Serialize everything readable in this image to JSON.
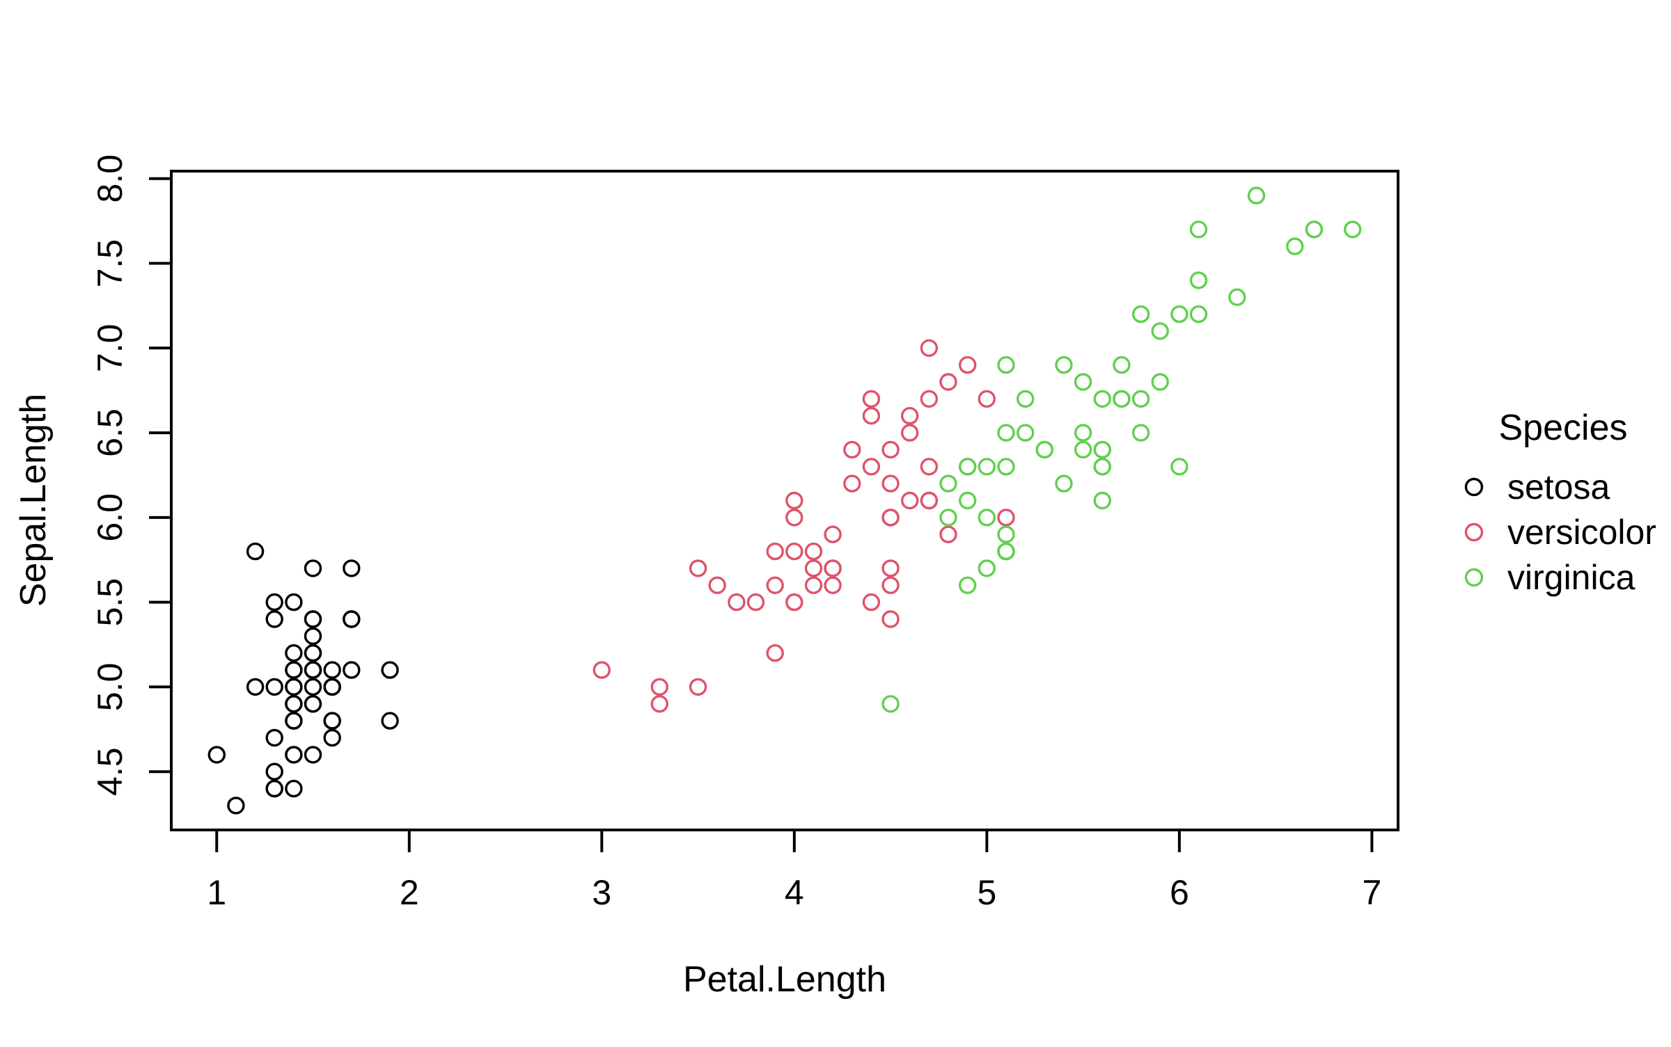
{
  "chart_data": {
    "type": "scatter",
    "xlabel": "Petal.Length",
    "ylabel": "Sepal.Length",
    "legend_title": "Species",
    "legend_position": "right-center",
    "grid": false,
    "marker": "open-circle",
    "xlim": [
      0.764,
      7.136
    ],
    "ylim": [
      4.156,
      8.044
    ],
    "x_ticks": [
      1,
      2,
      3,
      4,
      5,
      6,
      7
    ],
    "y_ticks": [
      "4.5",
      "5.0",
      "5.5",
      "6.0",
      "6.5",
      "7.0",
      "7.5",
      "8.0"
    ],
    "point_columns": [
      "Petal.Length",
      "Sepal.Length"
    ],
    "series": [
      {
        "name": "setosa",
        "color": "#000000",
        "points": [
          [
            1.4,
            5.1
          ],
          [
            1.4,
            4.9
          ],
          [
            1.3,
            4.7
          ],
          [
            1.5,
            4.6
          ],
          [
            1.4,
            5.0
          ],
          [
            1.7,
            5.4
          ],
          [
            1.4,
            4.6
          ],
          [
            1.5,
            5.0
          ],
          [
            1.4,
            4.4
          ],
          [
            1.5,
            4.9
          ],
          [
            1.5,
            5.4
          ],
          [
            1.6,
            4.8
          ],
          [
            1.4,
            4.8
          ],
          [
            1.1,
            4.3
          ],
          [
            1.2,
            5.8
          ],
          [
            1.5,
            5.7
          ],
          [
            1.3,
            5.4
          ],
          [
            1.4,
            5.1
          ],
          [
            1.7,
            5.7
          ],
          [
            1.5,
            5.1
          ],
          [
            1.7,
            5.4
          ],
          [
            1.5,
            5.1
          ],
          [
            1.0,
            4.6
          ],
          [
            1.7,
            5.1
          ],
          [
            1.9,
            4.8
          ],
          [
            1.6,
            5.0
          ],
          [
            1.6,
            5.0
          ],
          [
            1.5,
            5.2
          ],
          [
            1.4,
            5.2
          ],
          [
            1.6,
            4.7
          ],
          [
            1.6,
            4.8
          ],
          [
            1.5,
            5.4
          ],
          [
            1.5,
            5.2
          ],
          [
            1.4,
            5.5
          ],
          [
            1.5,
            4.9
          ],
          [
            1.2,
            5.0
          ],
          [
            1.3,
            5.5
          ],
          [
            1.4,
            4.9
          ],
          [
            1.3,
            4.4
          ],
          [
            1.5,
            5.1
          ],
          [
            1.3,
            5.0
          ],
          [
            1.3,
            4.5
          ],
          [
            1.3,
            4.4
          ],
          [
            1.6,
            5.0
          ],
          [
            1.9,
            5.1
          ],
          [
            1.4,
            4.8
          ],
          [
            1.6,
            5.1
          ],
          [
            1.4,
            4.6
          ],
          [
            1.5,
            5.3
          ],
          [
            1.4,
            5.0
          ]
        ]
      },
      {
        "name": "versicolor",
        "color": "#DF536B",
        "points": [
          [
            4.7,
            7.0
          ],
          [
            4.5,
            6.4
          ],
          [
            4.9,
            6.9
          ],
          [
            4.0,
            5.5
          ],
          [
            4.6,
            6.5
          ],
          [
            4.5,
            5.7
          ],
          [
            4.7,
            6.3
          ],
          [
            3.3,
            4.9
          ],
          [
            4.6,
            6.6
          ],
          [
            3.9,
            5.2
          ],
          [
            3.5,
            5.0
          ],
          [
            4.2,
            5.9
          ],
          [
            4.0,
            6.0
          ],
          [
            4.7,
            6.1
          ],
          [
            3.6,
            5.6
          ],
          [
            4.4,
            6.7
          ],
          [
            4.5,
            5.6
          ],
          [
            4.1,
            5.8
          ],
          [
            4.5,
            6.2
          ],
          [
            3.9,
            5.6
          ],
          [
            4.8,
            5.9
          ],
          [
            4.0,
            6.1
          ],
          [
            4.9,
            6.3
          ],
          [
            4.7,
            6.1
          ],
          [
            4.3,
            6.4
          ],
          [
            4.4,
            6.6
          ],
          [
            4.8,
            6.8
          ],
          [
            5.0,
            6.7
          ],
          [
            4.5,
            6.0
          ],
          [
            3.5,
            5.7
          ],
          [
            3.8,
            5.5
          ],
          [
            3.7,
            5.5
          ],
          [
            3.9,
            5.8
          ],
          [
            5.1,
            6.0
          ],
          [
            4.5,
            5.4
          ],
          [
            4.5,
            6.0
          ],
          [
            4.7,
            6.7
          ],
          [
            4.4,
            6.3
          ],
          [
            4.1,
            5.6
          ],
          [
            4.0,
            5.5
          ],
          [
            4.4,
            5.5
          ],
          [
            4.6,
            6.1
          ],
          [
            4.0,
            5.8
          ],
          [
            3.3,
            5.0
          ],
          [
            4.2,
            5.6
          ],
          [
            4.2,
            5.7
          ],
          [
            4.2,
            5.7
          ],
          [
            4.3,
            6.2
          ],
          [
            3.0,
            5.1
          ],
          [
            4.1,
            5.7
          ]
        ]
      },
      {
        "name": "virginica",
        "color": "#61D04F",
        "points": [
          [
            6.0,
            6.3
          ],
          [
            5.1,
            5.8
          ],
          [
            5.9,
            7.1
          ],
          [
            5.6,
            6.3
          ],
          [
            5.8,
            6.5
          ],
          [
            6.6,
            7.6
          ],
          [
            4.5,
            4.9
          ],
          [
            6.3,
            7.3
          ],
          [
            5.8,
            6.7
          ],
          [
            6.1,
            7.2
          ],
          [
            5.1,
            6.5
          ],
          [
            5.3,
            6.4
          ],
          [
            5.5,
            6.8
          ],
          [
            5.0,
            5.7
          ],
          [
            5.1,
            5.8
          ],
          [
            5.3,
            6.4
          ],
          [
            5.5,
            6.5
          ],
          [
            6.7,
            7.7
          ],
          [
            6.9,
            7.7
          ],
          [
            5.0,
            6.0
          ],
          [
            5.7,
            6.9
          ],
          [
            4.9,
            5.6
          ],
          [
            6.7,
            7.7
          ],
          [
            4.9,
            6.3
          ],
          [
            5.7,
            6.7
          ],
          [
            6.0,
            7.2
          ],
          [
            4.8,
            6.2
          ],
          [
            4.9,
            6.1
          ],
          [
            5.6,
            6.4
          ],
          [
            5.8,
            7.2
          ],
          [
            6.1,
            7.4
          ],
          [
            6.4,
            7.9
          ],
          [
            5.6,
            6.4
          ],
          [
            5.1,
            6.3
          ],
          [
            5.6,
            6.1
          ],
          [
            6.1,
            7.7
          ],
          [
            5.6,
            6.3
          ],
          [
            5.5,
            6.4
          ],
          [
            4.8,
            6.0
          ],
          [
            5.4,
            6.9
          ],
          [
            5.6,
            6.7
          ],
          [
            5.1,
            6.9
          ],
          [
            5.1,
            5.8
          ],
          [
            5.9,
            6.8
          ],
          [
            5.7,
            6.7
          ],
          [
            5.2,
            6.7
          ],
          [
            5.0,
            6.3
          ],
          [
            5.2,
            6.5
          ],
          [
            5.4,
            6.2
          ],
          [
            5.1,
            5.9
          ]
        ]
      }
    ]
  },
  "colors": {
    "background": "#ffffff",
    "foreground": "#000000",
    "setosa": "#000000",
    "versicolor": "#DF536B",
    "virginica": "#61D04F"
  }
}
